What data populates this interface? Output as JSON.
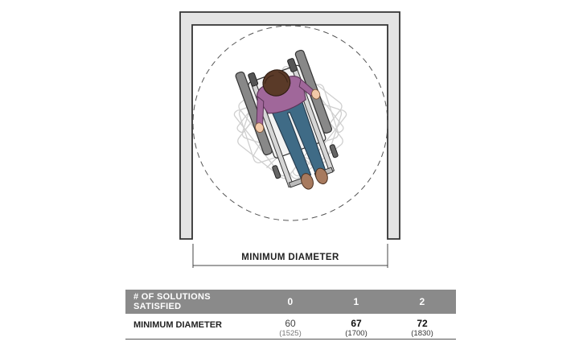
{
  "dimension_label": "MINIMUM DIAMETER",
  "table": {
    "header": {
      "label": "# OF SOLUTIONS SATISFIED",
      "columns": [
        "0",
        "1",
        "2"
      ]
    },
    "row": {
      "label": "MINIMUM DIAMETER",
      "cells": [
        {
          "value": "60",
          "sub": "(1525)",
          "emphasis": false
        },
        {
          "value": "67",
          "sub": "(1700)",
          "emphasis": true
        },
        {
          "value": "72",
          "sub": "(1830)",
          "emphasis": true
        }
      ]
    }
  },
  "colors": {
    "wall_fill": "#e4e4e4",
    "wall_stroke": "#333333",
    "header_bg": "#8a8a8a",
    "shirt": "#a0679a",
    "jeans": "#3f6b86",
    "hair": "#5a3a28",
    "skin": "#f2c9a8"
  }
}
